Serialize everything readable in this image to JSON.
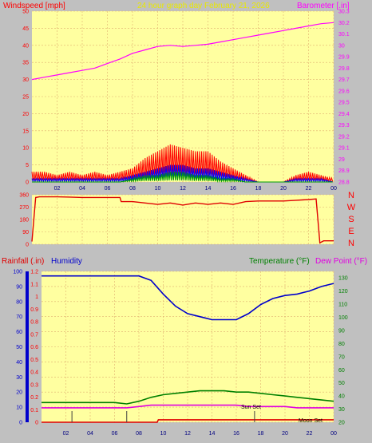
{
  "header": {
    "left_label": "Windspeed [mph]",
    "center_label": "24 hour graph day   February 21, 2026",
    "right_label": "Barometer [.in]"
  },
  "direction_labels": [
    "N",
    "W",
    "S",
    "E",
    "N"
  ],
  "bottom_header": {
    "rain_label": "Rainfall (.in)",
    "humidity_label": "Humidity",
    "temp_label": "Temperature (°F)",
    "dew_label": "Dew Point (°F)"
  },
  "annotations": {
    "sun_set": "Sun Set",
    "moon_set": "Moon Set"
  },
  "colors": {
    "plot_bg": "#ffffa0",
    "grid": "#e0b070",
    "wind_gust": "#ff0000",
    "wind_avg": "#0000ff",
    "wind_low": "#00a000",
    "barometer": "#ff00ff",
    "direction": "#e00000",
    "humidity": "#0000cc",
    "temperature": "#008000",
    "dew_point": "#e000e0",
    "rain": "#e00000",
    "left_label": "#ff0000",
    "center_label": "#e8e800",
    "right_label": "#ff00ff"
  },
  "chart_data": [
    {
      "type": "line",
      "x_ticks": [
        "02",
        "04",
        "06",
        "08",
        "10",
        "12",
        "14",
        "16",
        "18",
        "20",
        "22",
        "00"
      ],
      "left_ticks": [
        "0",
        "5",
        "10",
        "15",
        "20",
        "25",
        "30",
        "35",
        "40",
        "45",
        "50"
      ],
      "right_ticks": [
        "28.8",
        "28.9",
        "29",
        "29.1",
        "29.2",
        "29.3",
        "29.4",
        "29.5",
        "29.6",
        "29.7",
        "29.8",
        "29.9",
        "30",
        "30.1",
        "30.2",
        "30.3"
      ],
      "ylim_left": [
        0,
        50
      ],
      "ylim_right": [
        28.8,
        30.3
      ],
      "series": [
        {
          "axis": "right",
          "x": [
            0,
            1,
            2,
            3,
            4,
            5,
            6,
            7,
            8,
            9,
            10,
            11,
            12,
            13,
            14,
            15,
            16,
            17,
            18,
            19,
            20,
            21,
            22,
            23,
            24
          ],
          "values": [
            29.7,
            29.72,
            29.74,
            29.76,
            29.78,
            29.8,
            29.84,
            29.88,
            29.93,
            29.96,
            29.99,
            30.0,
            29.99,
            30.0,
            30.01,
            30.03,
            30.05,
            30.07,
            30.09,
            30.11,
            30.13,
            30.15,
            30.17,
            30.19,
            30.2
          ]
        },
        {
          "axis": "left",
          "x": [
            0,
            1,
            2,
            3,
            4,
            5,
            6,
            7,
            8,
            9,
            10,
            11,
            12,
            13,
            14,
            15,
            16,
            17,
            18,
            19,
            20,
            21,
            22,
            23,
            24
          ],
          "values": [
            3,
            3,
            2,
            3,
            2,
            3,
            2,
            3,
            4,
            7,
            9,
            11,
            10,
            9,
            9,
            6,
            4,
            2,
            0,
            0,
            0,
            2,
            3,
            2,
            1
          ]
        },
        {
          "axis": "left",
          "x": [
            0,
            1,
            2,
            3,
            4,
            5,
            6,
            7,
            8,
            9,
            10,
            11,
            12,
            13,
            14,
            15,
            16,
            17,
            18,
            19,
            20,
            21,
            22,
            23,
            24
          ],
          "values": [
            1,
            1,
            1,
            1,
            1,
            1,
            1,
            1,
            2,
            3,
            4,
            5,
            5,
            4,
            4,
            3,
            2,
            1,
            0,
            0,
            0,
            1,
            1,
            1,
            0
          ]
        },
        {
          "axis": "left",
          "x": [
            0,
            1,
            2,
            3,
            4,
            5,
            6,
            7,
            8,
            9,
            10,
            11,
            12,
            13,
            14,
            15,
            16,
            17,
            18,
            19,
            20,
            21,
            22,
            23,
            24
          ],
          "values": [
            0,
            0,
            0,
            0,
            0,
            0,
            0,
            0,
            1,
            2,
            2,
            3,
            3,
            2,
            2,
            1,
            1,
            0,
            0,
            0,
            0,
            0,
            0,
            0,
            0
          ]
        }
      ]
    },
    {
      "type": "line",
      "x_ticks": [
        "02",
        "04",
        "06",
        "08",
        "10",
        "12",
        "14",
        "16",
        "18",
        "20",
        "22",
        "00"
      ],
      "left_ticks": [
        "0",
        "90",
        "180",
        "270",
        "360"
      ],
      "ylim": [
        0,
        360
      ],
      "series": [
        {
          "x": [
            0,
            0.3,
            0.6,
            1,
            2,
            3,
            4,
            5,
            6,
            7,
            7.1,
            8,
            9,
            10,
            11,
            12,
            13,
            14,
            15,
            16,
            17,
            18,
            19,
            20,
            21,
            22,
            22.6,
            22.9,
            23.2,
            24
          ],
          "values": [
            20,
            340,
            345,
            345,
            345,
            343,
            340,
            340,
            340,
            340,
            310,
            310,
            300,
            290,
            300,
            285,
            300,
            290,
            300,
            290,
            310,
            315,
            315,
            315,
            320,
            325,
            330,
            10,
            25,
            25
          ]
        }
      ]
    },
    {
      "type": "line",
      "x_ticks": [
        "02",
        "04",
        "06",
        "08",
        "10",
        "12",
        "14",
        "16",
        "18",
        "20",
        "22",
        "00"
      ],
      "left_ticks": [
        "0",
        "10",
        "20",
        "30",
        "40",
        "50",
        "60",
        "70",
        "80",
        "90",
        "100"
      ],
      "rain_ticks": [
        "0",
        "0.1",
        "0.2",
        "0.3",
        "0.4",
        "0.5",
        "0.6",
        "0.7",
        "0.8",
        "0.9",
        "1",
        "1.1",
        "1.2"
      ],
      "right_ticks": [
        "20",
        "30",
        "40",
        "50",
        "60",
        "70",
        "80",
        "90",
        "100",
        "110",
        "120",
        "130"
      ],
      "ylim_humidity": [
        0,
        100
      ],
      "ylim_rain": [
        0,
        1.2
      ],
      "ylim_temp": [
        20,
        135
      ],
      "series": [
        {
          "axis": "humidity",
          "x": [
            0,
            1,
            2,
            3,
            4,
            5,
            6,
            7,
            8,
            9,
            10,
            11,
            12,
            13,
            14,
            15,
            16,
            17,
            18,
            19,
            20,
            21,
            22,
            23,
            24
          ],
          "values": [
            97,
            97,
            97,
            97,
            97,
            97,
            97,
            97,
            97,
            94,
            85,
            77,
            72,
            70,
            68,
            68,
            68,
            72,
            78,
            82,
            84,
            85,
            87,
            90,
            92
          ]
        },
        {
          "axis": "temp",
          "x": [
            0,
            1,
            2,
            3,
            4,
            5,
            6,
            7,
            8,
            9,
            10,
            11,
            12,
            13,
            14,
            15,
            16,
            17,
            18,
            19,
            20,
            21,
            22,
            23,
            24
          ],
          "values": [
            35,
            35,
            35,
            35,
            35,
            35,
            35,
            34,
            36,
            39,
            41,
            42,
            43,
            44,
            44,
            44,
            43,
            43,
            42,
            41,
            40,
            39,
            38,
            37,
            36
          ]
        },
        {
          "axis": "temp",
          "x": [
            0,
            1,
            2,
            3,
            4,
            5,
            6,
            7,
            8,
            9,
            10,
            11,
            12,
            13,
            14,
            15,
            16,
            17,
            18,
            19,
            20,
            21,
            22,
            23,
            24
          ],
          "values": [
            31,
            31,
            31,
            31,
            31,
            31,
            31,
            31,
            32,
            33,
            33,
            33,
            33,
            33,
            33,
            33,
            33,
            32,
            32,
            32,
            32,
            31,
            31,
            31,
            31
          ]
        },
        {
          "axis": "rain",
          "x": [
            0,
            9.5,
            9.6,
            24
          ],
          "values": [
            0.0,
            0.0,
            0.02,
            0.02
          ]
        }
      ]
    }
  ]
}
